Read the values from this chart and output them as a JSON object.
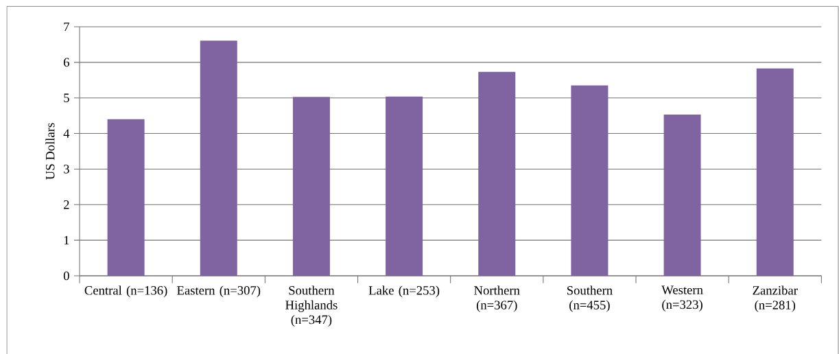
{
  "chart_data": {
    "type": "bar",
    "ylabel": "US Dollars",
    "categories": [
      "Central (n=136)",
      "Eastern (n=307)",
      "Southern Highlands (n=347)",
      "Lake (n=253)",
      "Northern (n=367)",
      "Southern (n=455)",
      "Western (n=323)",
      "Zanzibar (n=281)"
    ],
    "values": [
      4.4,
      6.61,
      5.03,
      5.04,
      5.73,
      5.35,
      4.53,
      5.83
    ],
    "color": "#8064a2",
    "ylim": [
      0,
      7
    ],
    "yticks": [
      0,
      1,
      2,
      3,
      4,
      5,
      6,
      7
    ],
    "grid": "y"
  }
}
